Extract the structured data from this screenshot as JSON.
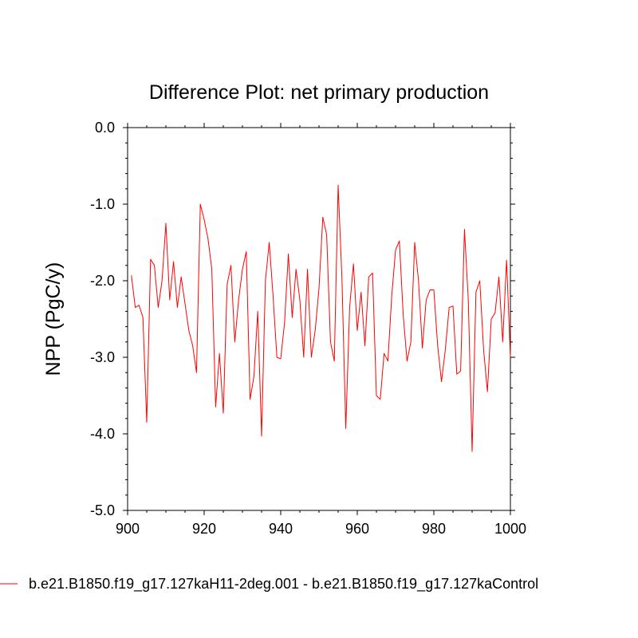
{
  "chart_data": {
    "type": "line",
    "title": "Difference Plot: net primary production",
    "xlabel": "",
    "ylabel": "NPP  (PgC/y)",
    "xlim": [
      900,
      1000
    ],
    "ylim": [
      -5.0,
      0.0
    ],
    "xticks": [
      900,
      920,
      940,
      960,
      980,
      1000
    ],
    "xtick_labels": [
      "900",
      "920",
      "940",
      "960",
      "980",
      "1000"
    ],
    "yticks": [
      0.0,
      -1.0,
      -2.0,
      -3.0,
      -4.0,
      -5.0
    ],
    "ytick_labels": [
      "0.0",
      "-1.0",
      "-2.0",
      "-3.0",
      "-4.0",
      "-5.0"
    ],
    "grid": false,
    "legend_position": "bottom",
    "series": [
      {
        "name": "b.e21.B1850.f19_g17.127kaH11-2deg.001 - b.e21.B1850.f19_g17.127kaControl",
        "color": "#ff0000",
        "x": [
          901,
          902,
          903,
          904,
          905,
          906,
          907,
          908,
          909,
          910,
          911,
          912,
          913,
          914,
          915,
          916,
          917,
          918,
          919,
          920,
          921,
          922,
          923,
          924,
          925,
          926,
          927,
          928,
          929,
          930,
          931,
          932,
          933,
          934,
          935,
          936,
          937,
          938,
          939,
          940,
          941,
          942,
          943,
          944,
          945,
          946,
          947,
          948,
          949,
          950,
          951,
          952,
          953,
          954,
          955,
          956,
          957,
          958,
          959,
          960,
          961,
          962,
          963,
          964,
          965,
          966,
          967,
          968,
          969,
          970,
          971,
          972,
          973,
          974,
          975,
          976,
          977,
          978,
          979,
          980,
          981,
          982,
          983,
          984,
          985,
          986,
          987,
          988,
          989,
          990,
          991,
          992,
          993,
          994,
          995,
          996,
          997,
          998,
          999,
          1000
        ],
        "values": [
          -1.93,
          -2.35,
          -2.32,
          -2.48,
          -3.85,
          -1.72,
          -1.8,
          -2.35,
          -2.0,
          -1.25,
          -2.25,
          -1.75,
          -2.35,
          -1.95,
          -2.3,
          -2.65,
          -2.85,
          -3.2,
          -1.0,
          -1.2,
          -1.45,
          -1.85,
          -3.65,
          -2.95,
          -3.73,
          -2.05,
          -1.8,
          -2.8,
          -2.25,
          -1.85,
          -1.62,
          -3.55,
          -3.25,
          -2.4,
          -4.03,
          -2.0,
          -1.5,
          -2.2,
          -3.0,
          -3.02,
          -2.55,
          -1.65,
          -2.48,
          -1.85,
          -2.25,
          -3.0,
          -1.85,
          -3.0,
          -2.65,
          -2.1,
          -1.17,
          -1.4,
          -2.8,
          -3.05,
          -0.75,
          -1.98,
          -3.93,
          -2.35,
          -1.78,
          -2.65,
          -2.15,
          -2.85,
          -1.95,
          -1.9,
          -3.5,
          -3.55,
          -2.95,
          -3.05,
          -2.2,
          -1.6,
          -1.48,
          -2.45,
          -3.05,
          -2.8,
          -1.5,
          -2.0,
          -2.88,
          -2.25,
          -2.12,
          -2.12,
          -2.85,
          -3.32,
          -2.9,
          -2.35,
          -2.33,
          -3.22,
          -3.18,
          -1.33,
          -2.25,
          -4.23,
          -2.15,
          -2.0,
          -2.9,
          -3.45,
          -2.5,
          -2.42,
          -1.95,
          -2.8,
          -1.73,
          -3.0
        ]
      }
    ]
  }
}
